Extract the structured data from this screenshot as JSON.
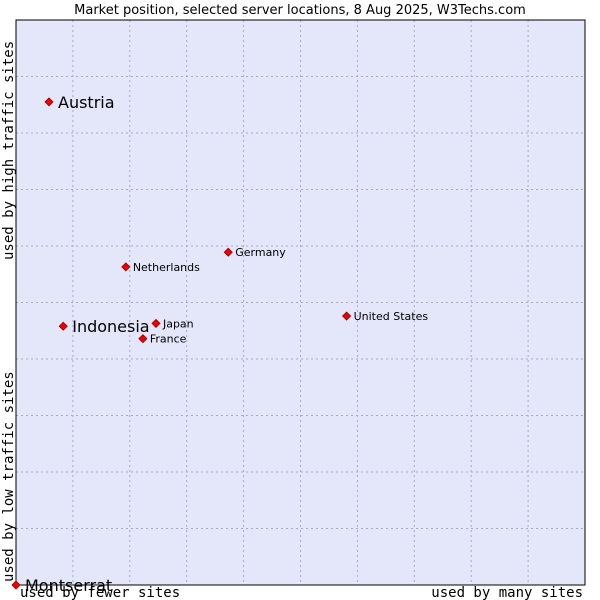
{
  "chart_data": {
    "type": "scatter",
    "title": "Market position, selected server locations, 8 Aug 2025, W3Techs.com",
    "x_axis": {
      "low_label": "used by fewer sites",
      "high_label": "used by many sites",
      "range": [
        0,
        100
      ]
    },
    "y_axis": {
      "low_label": "used by low traffic sites",
      "high_label": "used by high traffic sites",
      "range": [
        0,
        100
      ]
    },
    "grid": true,
    "points": [
      {
        "name": "Austria",
        "x": 5.8,
        "y": 85.5,
        "highlight": true
      },
      {
        "name": "Indonesia",
        "x": 8.3,
        "y": 45.8,
        "highlight": true
      },
      {
        "name": "Montserrat",
        "x": 0,
        "y": 0,
        "highlight": true
      },
      {
        "name": "Netherlands",
        "x": 19.3,
        "y": 56.3,
        "highlight": false
      },
      {
        "name": "Germany",
        "x": 37.3,
        "y": 58.9,
        "highlight": false
      },
      {
        "name": "Japan",
        "x": 24.6,
        "y": 46.3,
        "highlight": false
      },
      {
        "name": "France",
        "x": 22.3,
        "y": 43.6,
        "highlight": false
      },
      {
        "name": "United States",
        "x": 58.1,
        "y": 47.6,
        "highlight": false
      }
    ]
  },
  "colors": {
    "plot_bg": "#e4e6fa",
    "grid": "#a8a8c8",
    "marker": "#ee0000",
    "marker_edge": "#990000"
  }
}
